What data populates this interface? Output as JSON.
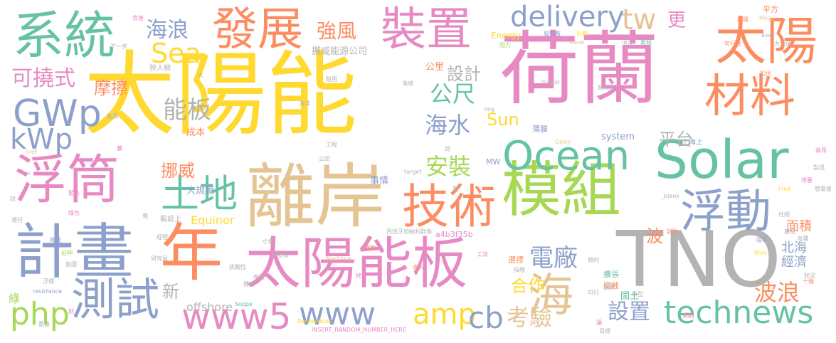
{
  "colors": {
    "background": "#ffffff",
    "green": "#66c2a5",
    "orange": "#fc8d62",
    "blue": "#8da0cb",
    "pink": "#e78ac3",
    "lime": "#a6d854",
    "yellow": "#ffd92f",
    "tan": "#e5c494",
    "gray": "#b3b3b3"
  },
  "words": [
    {
      "text": "太陽能",
      "color": "yellow"
    },
    {
      "text": "荷蘭",
      "color": "pink"
    },
    {
      "text": "離岸",
      "color": "tan"
    },
    {
      "text": "TNO",
      "color": "gray"
    },
    {
      "text": "太陽能板",
      "color": "pink"
    },
    {
      "text": "模組",
      "color": "lime"
    },
    {
      "text": "計畫",
      "color": "blue"
    },
    {
      "text": "浮筒",
      "color": "pink"
    },
    {
      "text": "系統",
      "color": "green"
    },
    {
      "text": "Solar",
      "color": "green"
    },
    {
      "text": "太陽",
      "color": "orange"
    },
    {
      "text": "Ocean",
      "color": "green"
    },
    {
      "text": "技術",
      "color": "orange"
    },
    {
      "text": "浮動",
      "color": "blue"
    },
    {
      "text": "材料",
      "color": "orange"
    },
    {
      "text": "裝置",
      "color": "pink"
    },
    {
      "text": "發展",
      "color": "orange"
    },
    {
      "text": "年",
      "color": "orange"
    },
    {
      "text": "測試",
      "color": "blue"
    },
    {
      "text": "海",
      "color": "tan"
    },
    {
      "text": "technews",
      "color": "green"
    },
    {
      "text": "www5",
      "color": "pink"
    },
    {
      "text": "www",
      "color": "blue"
    },
    {
      "text": "土地",
      "color": "green"
    },
    {
      "text": "GWp",
      "color": "blue"
    },
    {
      "text": "delivery",
      "color": "blue"
    },
    {
      "text": "php",
      "color": "lime"
    },
    {
      "text": "amp",
      "color": "yellow"
    },
    {
      "text": "cb",
      "color": "blue"
    },
    {
      "text": "考驗",
      "color": "tan"
    },
    {
      "text": "Sea",
      "color": "yellow"
    },
    {
      "text": "tw",
      "color": "tan"
    },
    {
      "text": "kWp",
      "color": "blue"
    },
    {
      "text": "可撓式",
      "color": "pink"
    },
    {
      "text": "公尺",
      "color": "green"
    },
    {
      "text": "海水",
      "color": "blue"
    },
    {
      "text": "電廠",
      "color": "blue"
    },
    {
      "text": "安裝",
      "color": "lime"
    },
    {
      "text": "能板",
      "color": "gray"
    },
    {
      "text": "波浪",
      "color": "orange"
    },
    {
      "text": "設置",
      "color": "blue"
    },
    {
      "text": "海浪",
      "color": "blue"
    },
    {
      "text": "強風",
      "color": "orange"
    },
    {
      "text": "摩擦",
      "color": "orange"
    },
    {
      "text": "挪威",
      "color": "orange"
    },
    {
      "text": "平台",
      "color": "gray"
    },
    {
      "text": "設計",
      "color": "gray"
    },
    {
      "text": "Sun",
      "color": "yellow"
    },
    {
      "text": "合作",
      "color": "yellow"
    },
    {
      "text": "更",
      "color": "pink"
    },
    {
      "text": "波",
      "color": "orange"
    },
    {
      "text": "新",
      "color": "gray"
    },
    {
      "text": "北海",
      "color": "blue"
    },
    {
      "text": "經濟",
      "color": "blue"
    },
    {
      "text": "面積",
      "color": "orange"
    },
    {
      "text": "Equinor",
      "color": "yellow"
    },
    {
      "text": "offshore",
      "color": "gray"
    },
    {
      "text": "挪威能源公司",
      "color": "gray"
    },
    {
      "text": "大規模",
      "color": "blue"
    },
    {
      "text": "system",
      "color": "blue"
    },
    {
      "text": "事情",
      "color": "blue"
    },
    {
      "text": "國土",
      "color": "green"
    },
    {
      "text": "a4b3f35b",
      "color": "pink"
    },
    {
      "text": "成本",
      "color": "orange"
    },
    {
      "text": "公里",
      "color": "orange"
    },
    {
      "text": "狹人稠",
      "color": "gray"
    },
    {
      "text": "裝設上",
      "color": "gray"
    },
    {
      "text": "寸土",
      "color": "gray"
    },
    {
      "text": "海上",
      "color": "blue"
    },
    {
      "text": "Energy",
      "color": "yellow"
    },
    {
      "text": "平方",
      "color": "orange"
    },
    {
      "text": "MW",
      "color": "blue"
    },
    {
      "text": "薄膜",
      "color": "blue"
    },
    {
      "text": "選擇",
      "color": "orange"
    },
    {
      "text": "擴張",
      "color": "green"
    },
    {
      "text": "腐蝕",
      "color": "orange"
    },
    {
      "text": "Maritime",
      "color": "tan"
    },
    {
      "text": "西班牙加納利群島",
      "color": "gray"
    },
    {
      "text": "Renewables",
      "color": "yellow"
    },
    {
      "text": "INSERT_RANDOM_NUMBER_HERE",
      "color": "pink"
    },
    {
      "text": "resistance",
      "color": "blue"
    },
    {
      "text": "Soppe",
      "color": "green"
    },
    {
      "text": "href",
      "color": "tan"
    },
    {
      "text": "src",
      "color": "gray"
    },
    {
      "text": "target",
      "color": "gray"
    },
    {
      "text": "_blank",
      "color": "gray"
    },
    {
      "text": "Moss",
      "color": "tan"
    },
    {
      "text": "wave",
      "color": "tan"
    },
    {
      "text": "zoneid",
      "color": "gray"
    },
    {
      "text": "img",
      "color": "gray"
    },
    {
      "text": "Olsen",
      "color": "tan"
    },
    {
      "text": "Wim",
      "color": "yellow"
    },
    {
      "text": "Fred",
      "color": "yellow"
    },
    {
      "text": "avw",
      "color": "gray"
    },
    {
      "text": "下一步",
      "color": "gray"
    },
    {
      "text": "背後",
      "color": "pink"
    },
    {
      "text": "可行性",
      "color": "orange"
    },
    {
      "text": "大王蓮",
      "color": "gray"
    },
    {
      "text": "風電廠",
      "color": "blue"
    },
    {
      "text": "計劃",
      "color": "yellow"
    },
    {
      "text": "透過",
      "color": "gray"
    },
    {
      "text": "阻力",
      "color": "lime"
    },
    {
      "text": "跟風",
      "color": "orange"
    },
    {
      "text": "氣候",
      "color": "green"
    },
    {
      "text": "耐用",
      "color": "gray"
    },
    {
      "text": "耐久度",
      "color": "gray"
    },
    {
      "text": "海域",
      "color": "gray"
    },
    {
      "text": "海平",
      "color": "blue"
    },
    {
      "text": "發電量",
      "color": "gray"
    },
    {
      "text": "工程",
      "color": "gray"
    },
    {
      "text": "研究員",
      "color": "gray"
    },
    {
      "text": "傾向",
      "color": "gray"
    },
    {
      "text": "工法",
      "color": "pink"
    },
    {
      "text": "專案",
      "color": "orange"
    },
    {
      "text": "產品",
      "color": "gray"
    },
    {
      "text": "試點",
      "color": "orange"
    },
    {
      "text": "網路",
      "color": "pink"
    },
    {
      "text": "起伏",
      "color": "orange"
    },
    {
      "text": "想要",
      "color": "pink"
    },
    {
      "text": "製成",
      "color": "gray"
    },
    {
      "text": "高昂",
      "color": "pink"
    },
    {
      "text": "目標",
      "color": "gray"
    },
    {
      "text": "浮標",
      "color": "gray"
    },
    {
      "text": "說",
      "color": "gray"
    },
    {
      "text": "開發商",
      "color": "gray"
    },
    {
      "text": "傳統",
      "color": "gray"
    },
    {
      "text": "面對",
      "color": "gray"
    },
    {
      "text": "可行",
      "color": "gray"
    },
    {
      "text": "新型",
      "color": "gray"
    },
    {
      "text": "十幾",
      "color": "orange"
    },
    {
      "text": "狀況",
      "color": "gray"
    },
    {
      "text": "蓋",
      "color": "pink"
    },
    {
      "text": "綠",
      "color": "lime"
    },
    {
      "text": "公司",
      "color": "gray"
    },
    {
      "text": "挑戰性",
      "color": "gray"
    },
    {
      "text": "海洋",
      "color": "gray"
    },
    {
      "text": "荷",
      "color": "gray"
    },
    {
      "text": "大",
      "color": "gray"
    },
    {
      "text": "寬",
      "color": "gray"
    },
    {
      "text": "能源",
      "color": "gray"
    },
    {
      "text": "杜絕",
      "color": "gray"
    },
    {
      "text": "修",
      "color": "pink"
    },
    {
      "text": "電",
      "color": "gray"
    },
    {
      "text": "寸金",
      "color": "gray"
    },
    {
      "text": "經理",
      "color": "gray"
    },
    {
      "text": "讓",
      "color": "pink"
    },
    {
      "text": "延伸",
      "color": "lime"
    },
    {
      "text": "綠色",
      "color": "pink"
    },
    {
      "text": "藍色",
      "color": "pink"
    },
    {
      "text": "重量",
      "color": "gray"
    },
    {
      "text": "運行",
      "color": "gray"
    },
    {
      "text": "降低",
      "color": "blue"
    },
    {
      "text": "創",
      "color": "pink"
    },
    {
      "text": "海灘",
      "color": "gray"
    },
    {
      "text": "希望",
      "color": "gray"
    },
    {
      "text": "島國",
      "color": "gray"
    },
    {
      "text": "走火",
      "color": "orange"
    },
    {
      "text": "損壞",
      "color": "gray"
    }
  ]
}
